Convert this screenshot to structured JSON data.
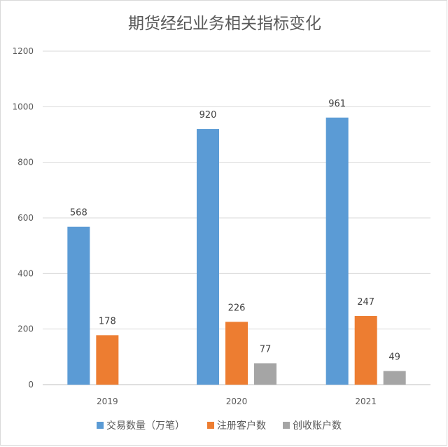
{
  "chart_data": {
    "type": "bar",
    "title": "期货经纪业务相关指标变化",
    "xlabel": "",
    "ylabel": "",
    "categories": [
      "2019",
      "2020",
      "2021"
    ],
    "ylim": [
      0,
      1200
    ],
    "yticks": [
      0,
      200,
      400,
      600,
      800,
      1000,
      1200
    ],
    "grid": true,
    "legend": "bottom",
    "series": [
      {
        "name": "交易数量（万笔）",
        "color": "#5b9bd5",
        "values": [
          568,
          920,
          961
        ],
        "labels": [
          "568",
          "920",
          "961"
        ]
      },
      {
        "name": "注册客户数",
        "color": "#ed7d31",
        "values": [
          178,
          226,
          247
        ],
        "labels": [
          "178",
          "226",
          "247"
        ]
      },
      {
        "name": "创收账户数",
        "color": "#a5a5a5",
        "values": [
          null,
          77,
          49
        ],
        "labels": [
          "",
          "77",
          "49"
        ]
      }
    ]
  }
}
